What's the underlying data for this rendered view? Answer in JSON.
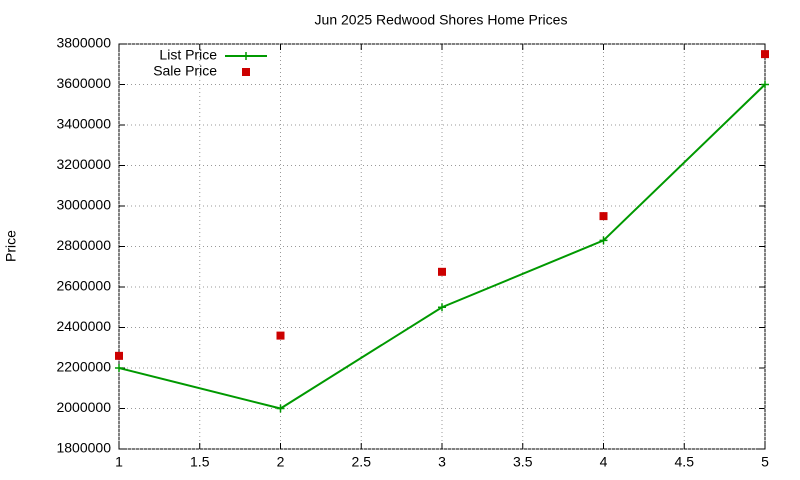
{
  "chart_data": {
    "type": "line",
    "title": "Jun 2025 Redwood Shores Home Prices",
    "y_label": "Price",
    "x": [
      1,
      2,
      3,
      4,
      5
    ],
    "series": [
      {
        "name": "List Price",
        "color": "#009900",
        "line": true,
        "marker": "plus",
        "values": [
          2200000,
          2000000,
          2500000,
          2830000,
          3600000
        ]
      },
      {
        "name": "Sale Price",
        "color": "#cc0000",
        "line": false,
        "marker": "square",
        "values": [
          2260000,
          2360000,
          2675000,
          2950000,
          3750000
        ]
      }
    ],
    "xlim": [
      1,
      5
    ],
    "xticks": [
      1,
      1.5,
      2,
      2.5,
      3,
      3.5,
      4,
      4.5,
      5
    ],
    "ylim": [
      1800000,
      3800000
    ],
    "yticks": [
      1800000,
      2000000,
      2200000,
      2400000,
      2600000,
      2800000,
      3000000,
      3200000,
      3400000,
      3600000,
      3800000
    ],
    "grid": true,
    "legend": "top-left"
  }
}
